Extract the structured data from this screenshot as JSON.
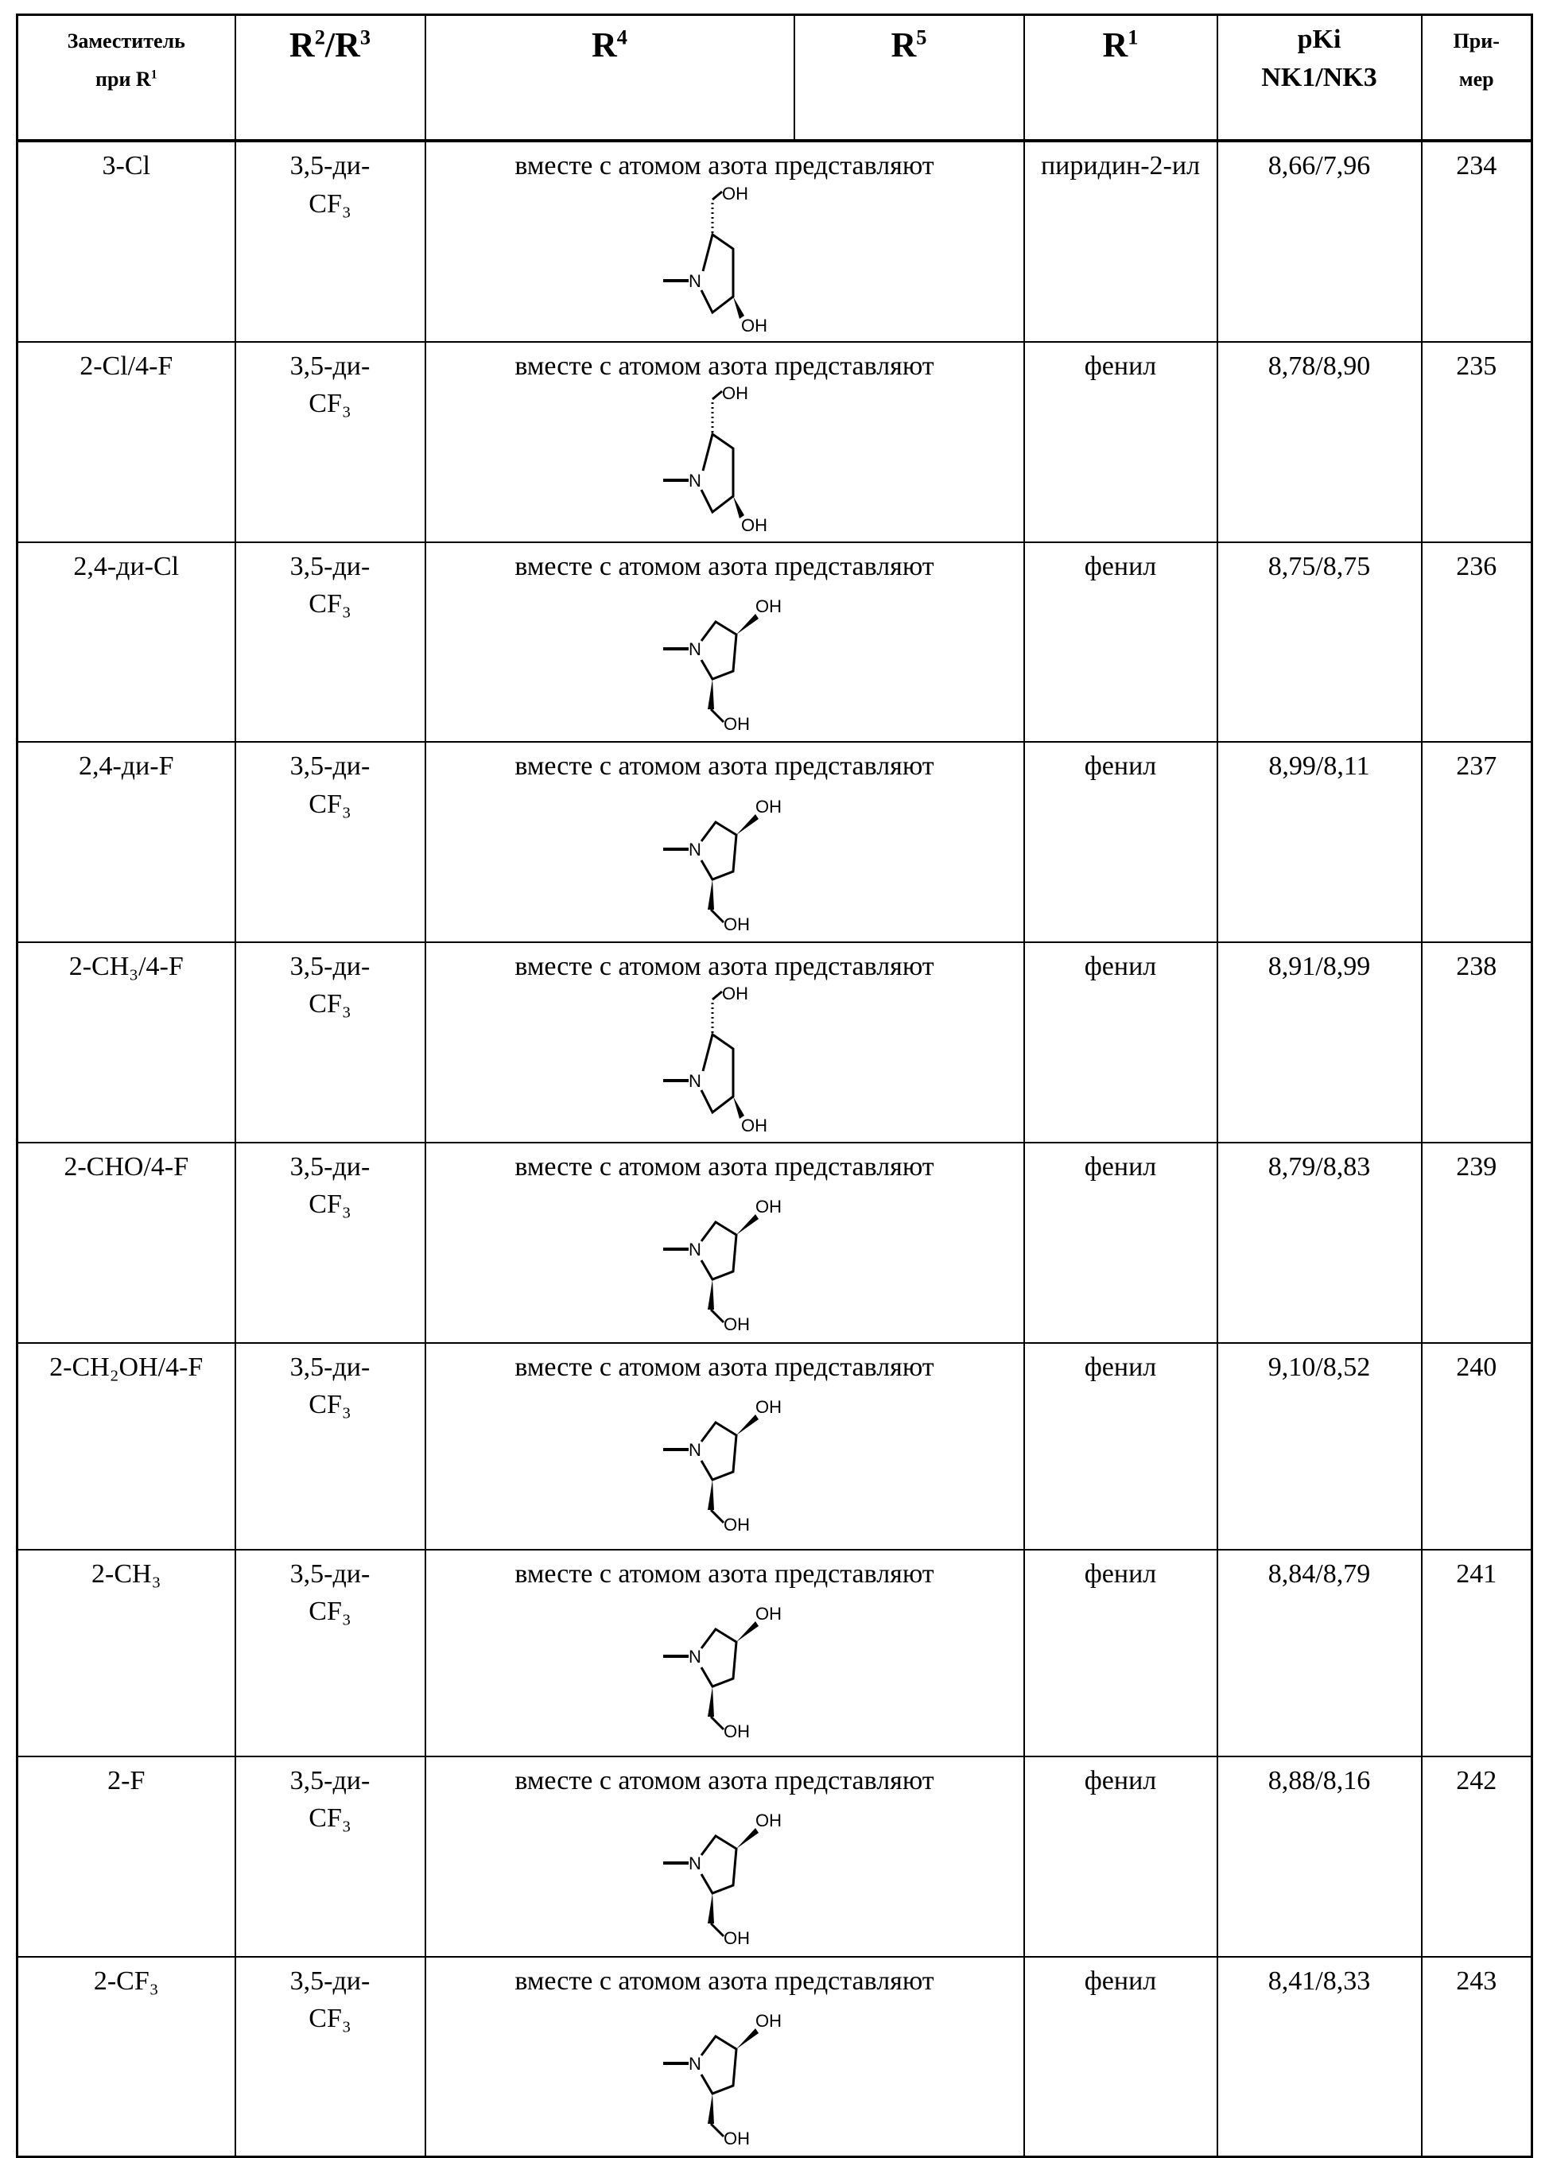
{
  "header": {
    "col1_line1": "Заместитель",
    "col1_line2": "при R",
    "col1_sup": "1",
    "col2": "R",
    "col2_sup": "2",
    "col2_mid": "/R",
    "col2_sup2": "3",
    "col3": "R",
    "col3_sup": "4",
    "col4": "R",
    "col4_sup": "5",
    "col5": "R",
    "col5_sup": "1",
    "col6_line1": "pKi",
    "col6_line2": "NK1/NK3",
    "col7_line1": "При-",
    "col7_line2": "мер"
  },
  "structure_labels": {
    "oh": "OH",
    "n": "N"
  },
  "rows": [
    {
      "sub": "3-Cl",
      "r23_1": "3,5-ди-",
      "r23_2": "CF₃",
      "r4": "вместе с атомом азота представляют",
      "structure": "A",
      "r1": "пиридин-2-ил",
      "pki": "8,66/7,96",
      "ex": "234"
    },
    {
      "sub": "2-Cl/4-F",
      "r23_1": "3,5-ди-",
      "r23_2": "CF₃",
      "r4": "вместе с атомом азота представляют",
      "structure": "A",
      "r1": "фенил",
      "pki": "8,78/8,90",
      "ex": "235"
    },
    {
      "sub": "2,4-ди-Cl",
      "r23_1": "3,5-ди-",
      "r23_2": "CF₃",
      "r4": "вместе с атомом азота представляют",
      "structure": "B",
      "r1": "фенил",
      "pki": "8,75/8,75",
      "ex": "236"
    },
    {
      "sub": "2,4-ди-F",
      "r23_1": "3,5-ди-",
      "r23_2": "CF₃",
      "r4": "вместе с атомом азота представляют",
      "structure": "B",
      "r1": "фенил",
      "pki": "8,99/8,11",
      "ex": "237"
    },
    {
      "sub": "2-CH₃/4-F",
      "r23_1": "3,5-ди-",
      "r23_2": "CF₃",
      "r4": "вместе с атомом азота представляют",
      "structure": "A",
      "r1": "фенил",
      "pki": "8,91/8,99",
      "ex": "238"
    },
    {
      "sub": "2-CHO/4-F",
      "r23_1": "3,5-ди-",
      "r23_2": "CF₃",
      "r4": "вместе с атомом азота представляют",
      "structure": "B",
      "r1": "фенил",
      "pki": "8,79/8,83",
      "ex": "239"
    },
    {
      "sub": "2-CH₂OH/4-F",
      "r23_1": "3,5-ди-",
      "r23_2": "CF₃",
      "r4": "вместе с атомом азота представляют",
      "structure": "B",
      "r1": "фенил",
      "pki": "9,10/8,52",
      "ex": "240"
    },
    {
      "sub": "2-CH₃",
      "r23_1": "3,5-ди-",
      "r23_2": "CF₃",
      "r4": "вместе с атомом азота представляют",
      "structure": "B",
      "r1": "фенил",
      "pki": "8,84/8,79",
      "ex": "241"
    },
    {
      "sub": "2-F",
      "r23_1": "3,5-ди-",
      "r23_2": "CF₃",
      "r4": "вместе с атомом азота представляют",
      "structure": "B",
      "r1": "фенил",
      "pki": "8,88/8,16",
      "ex": "242"
    },
    {
      "sub": "2-CF₃",
      "r23_1": "3,5-ди-",
      "r23_2": "CF₃",
      "r4": "вместе с атомом азота представляют",
      "structure": "B",
      "r1": "фенил",
      "pki": "8,41/8,33",
      "ex": "243"
    }
  ]
}
